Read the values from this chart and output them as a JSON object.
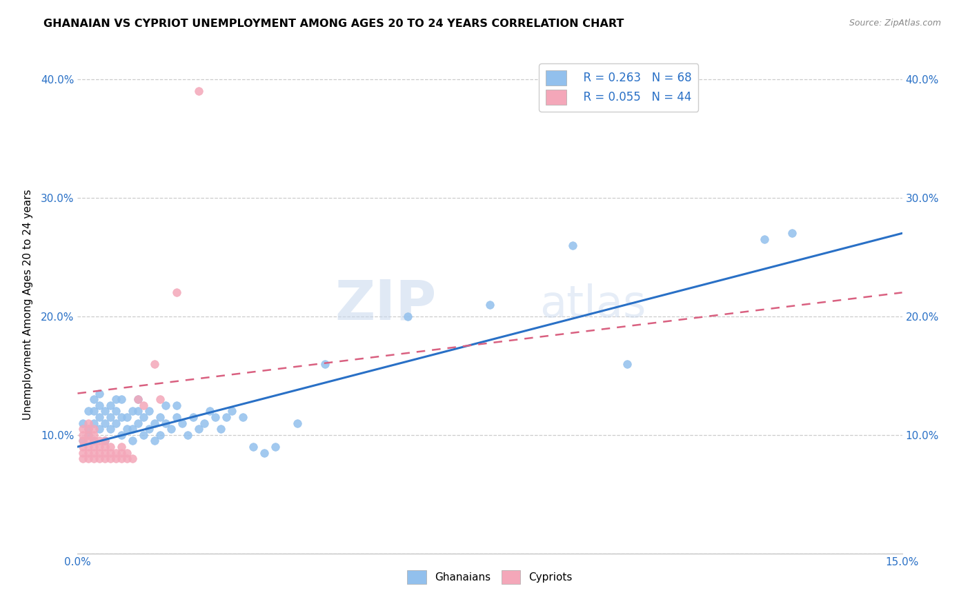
{
  "title": "GHANAIAN VS CYPRIOT UNEMPLOYMENT AMONG AGES 20 TO 24 YEARS CORRELATION CHART",
  "source": "Source: ZipAtlas.com",
  "ylabel": "Unemployment Among Ages 20 to 24 years",
  "xlim": [
    0.0,
    0.15
  ],
  "ylim": [
    0.0,
    0.42
  ],
  "ghana_color": "#92c0ed",
  "cyprus_color": "#f4a7b9",
  "ghana_line_color": "#2970c6",
  "cyprus_line_color": "#d96080",
  "ghana_R": 0.263,
  "ghana_N": 68,
  "cyprus_R": 0.055,
  "cyprus_N": 44,
  "legend_label_ghana": "Ghanaians",
  "legend_label_cyprus": "Cypriots",
  "watermark_zip": "ZIP",
  "watermark_atlas": "atlas",
  "ghana_x": [
    0.001,
    0.001,
    0.002,
    0.002,
    0.002,
    0.003,
    0.003,
    0.003,
    0.003,
    0.004,
    0.004,
    0.004,
    0.004,
    0.005,
    0.005,
    0.005,
    0.006,
    0.006,
    0.006,
    0.007,
    0.007,
    0.007,
    0.008,
    0.008,
    0.008,
    0.009,
    0.009,
    0.01,
    0.01,
    0.01,
    0.011,
    0.011,
    0.011,
    0.012,
    0.012,
    0.013,
    0.013,
    0.014,
    0.014,
    0.015,
    0.015,
    0.016,
    0.016,
    0.017,
    0.018,
    0.018,
    0.019,
    0.02,
    0.021,
    0.022,
    0.023,
    0.024,
    0.025,
    0.026,
    0.027,
    0.028,
    0.03,
    0.032,
    0.034,
    0.036,
    0.04,
    0.045,
    0.06,
    0.075,
    0.09,
    0.1,
    0.125,
    0.13
  ],
  "ghana_y": [
    0.095,
    0.11,
    0.1,
    0.12,
    0.105,
    0.095,
    0.11,
    0.12,
    0.13,
    0.105,
    0.115,
    0.125,
    0.135,
    0.095,
    0.11,
    0.12,
    0.105,
    0.115,
    0.125,
    0.11,
    0.12,
    0.13,
    0.1,
    0.115,
    0.13,
    0.105,
    0.115,
    0.095,
    0.105,
    0.12,
    0.11,
    0.12,
    0.13,
    0.1,
    0.115,
    0.105,
    0.12,
    0.095,
    0.11,
    0.1,
    0.115,
    0.11,
    0.125,
    0.105,
    0.115,
    0.125,
    0.11,
    0.1,
    0.115,
    0.105,
    0.11,
    0.12,
    0.115,
    0.105,
    0.115,
    0.12,
    0.115,
    0.09,
    0.085,
    0.09,
    0.11,
    0.16,
    0.2,
    0.21,
    0.26,
    0.16,
    0.265,
    0.27
  ],
  "cyprus_x": [
    0.001,
    0.001,
    0.001,
    0.001,
    0.001,
    0.001,
    0.002,
    0.002,
    0.002,
    0.002,
    0.002,
    0.002,
    0.002,
    0.003,
    0.003,
    0.003,
    0.003,
    0.003,
    0.003,
    0.004,
    0.004,
    0.004,
    0.004,
    0.005,
    0.005,
    0.005,
    0.005,
    0.006,
    0.006,
    0.006,
    0.007,
    0.007,
    0.008,
    0.008,
    0.008,
    0.009,
    0.009,
    0.01,
    0.011,
    0.012,
    0.014,
    0.015,
    0.018,
    0.022
  ],
  "cyprus_y": [
    0.08,
    0.085,
    0.09,
    0.095,
    0.1,
    0.105,
    0.08,
    0.085,
    0.09,
    0.095,
    0.1,
    0.105,
    0.11,
    0.08,
    0.085,
    0.09,
    0.095,
    0.1,
    0.105,
    0.08,
    0.085,
    0.09,
    0.095,
    0.08,
    0.085,
    0.09,
    0.095,
    0.08,
    0.085,
    0.09,
    0.08,
    0.085,
    0.08,
    0.085,
    0.09,
    0.08,
    0.085,
    0.08,
    0.13,
    0.125,
    0.16,
    0.13,
    0.22,
    0.39
  ]
}
